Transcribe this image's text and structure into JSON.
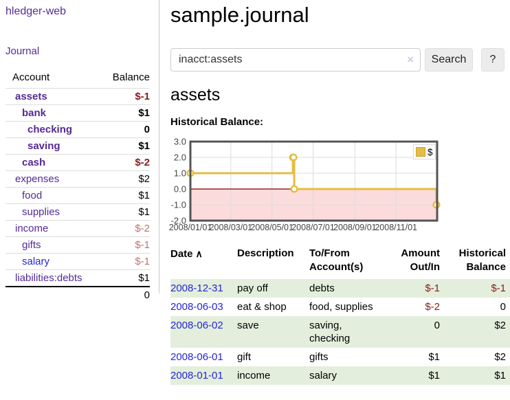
{
  "app": {
    "brand": "hledger-web"
  },
  "nav": {
    "journal": "Journal"
  },
  "sidebar": {
    "columns": {
      "account": "Account",
      "balance": "Balance"
    },
    "accounts": [
      {
        "name": "assets",
        "level": 1,
        "bold": true,
        "link": "purple",
        "balance": "$-1",
        "tone": "neg"
      },
      {
        "name": "bank",
        "level": 2,
        "bold": true,
        "link": "purple",
        "balance": "$1",
        "tone": "pos"
      },
      {
        "name": "checking",
        "level": 3,
        "bold": true,
        "link": "purple",
        "balance": "0",
        "tone": "pos"
      },
      {
        "name": "saving",
        "level": 3,
        "bold": true,
        "link": "purple",
        "balance": "$1",
        "tone": "pos"
      },
      {
        "name": "cash",
        "level": 2,
        "bold": true,
        "link": "purple",
        "balance": "$-2",
        "tone": "neg"
      },
      {
        "name": "expenses",
        "level": 1,
        "bold": false,
        "link": "purple",
        "balance": "$2",
        "tone": "pos"
      },
      {
        "name": "food",
        "level": 2,
        "bold": false,
        "link": "purple",
        "balance": "$1",
        "tone": "pos"
      },
      {
        "name": "supplies",
        "level": 2,
        "bold": false,
        "link": "purple",
        "balance": "$1",
        "tone": "pos"
      },
      {
        "name": "income",
        "level": 1,
        "bold": false,
        "link": "purple",
        "balance": "$-2",
        "tone": "rose"
      },
      {
        "name": "gifts",
        "level": 2,
        "bold": false,
        "link": "purple",
        "balance": "$-1",
        "tone": "rose"
      },
      {
        "name": "salary",
        "level": 2,
        "bold": false,
        "link": "blue",
        "balance": "$-1",
        "tone": "rose"
      },
      {
        "name": "liabilities:debts",
        "level": 1,
        "bold": false,
        "link": "purple",
        "balance": "$1",
        "tone": "pos"
      }
    ],
    "total": "0"
  },
  "header": {
    "title": "sample.journal"
  },
  "search": {
    "value": "inacct:assets",
    "button": "Search",
    "help": "?"
  },
  "account_page": {
    "heading": "assets",
    "chart_label": "Historical Balance:"
  },
  "icons": {
    "clear": "×",
    "sort_asc": "∧"
  },
  "chart_data": {
    "type": "line",
    "style": "step",
    "title": "Historical Balance",
    "series": [
      {
        "name": "$",
        "color": "#e5bd45",
        "points": [
          [
            "2008-01-01",
            1
          ],
          [
            "2008-06-01",
            2
          ],
          [
            "2008-06-02",
            2
          ],
          [
            "2008-06-03",
            0
          ],
          [
            "2008-12-31",
            -1
          ]
        ]
      }
    ],
    "ylim": [
      -2.0,
      3.0
    ],
    "yticks": [
      "3.0",
      "2.0",
      "1.0",
      "0.0",
      "-1.0",
      "-2.0"
    ],
    "xticks": [
      "2008/01/01",
      "2008/03/01",
      "2008/05/01",
      "2008/07/01",
      "2008/09/01",
      "2008/11/01"
    ],
    "xrange": [
      "2008-01-01",
      "2009-01-01"
    ],
    "legend_position": "top-right",
    "negative_fill": "#fbdbdb",
    "zero_line_color": "#992222",
    "grid": true
  },
  "register": {
    "headers": [
      "Date",
      "Description",
      "To/From Account(s)",
      "Amount Out/In",
      "Historical Balance"
    ],
    "rows": [
      {
        "date": "2008-12-31",
        "description": "pay off",
        "accounts": "debts",
        "amount": "$-1",
        "amount_tone": "neg",
        "balance": "$-1",
        "balance_tone": "neg"
      },
      {
        "date": "2008-06-03",
        "description": "eat & shop",
        "accounts": "food, supplies",
        "amount": "$-2",
        "amount_tone": "neg",
        "balance": "0",
        "balance_tone": "pos"
      },
      {
        "date": "2008-06-02",
        "description": "save",
        "accounts": "saving, checking",
        "amount": "0",
        "amount_tone": "pos",
        "balance": "$2",
        "balance_tone": "pos"
      },
      {
        "date": "2008-06-01",
        "description": "gift",
        "accounts": "gifts",
        "amount": "$1",
        "amount_tone": "pos",
        "balance": "$2",
        "balance_tone": "pos"
      },
      {
        "date": "2008-01-01",
        "description": "income",
        "accounts": "salary",
        "amount": "$1",
        "amount_tone": "pos",
        "balance": "$1",
        "balance_tone": "pos"
      }
    ]
  }
}
